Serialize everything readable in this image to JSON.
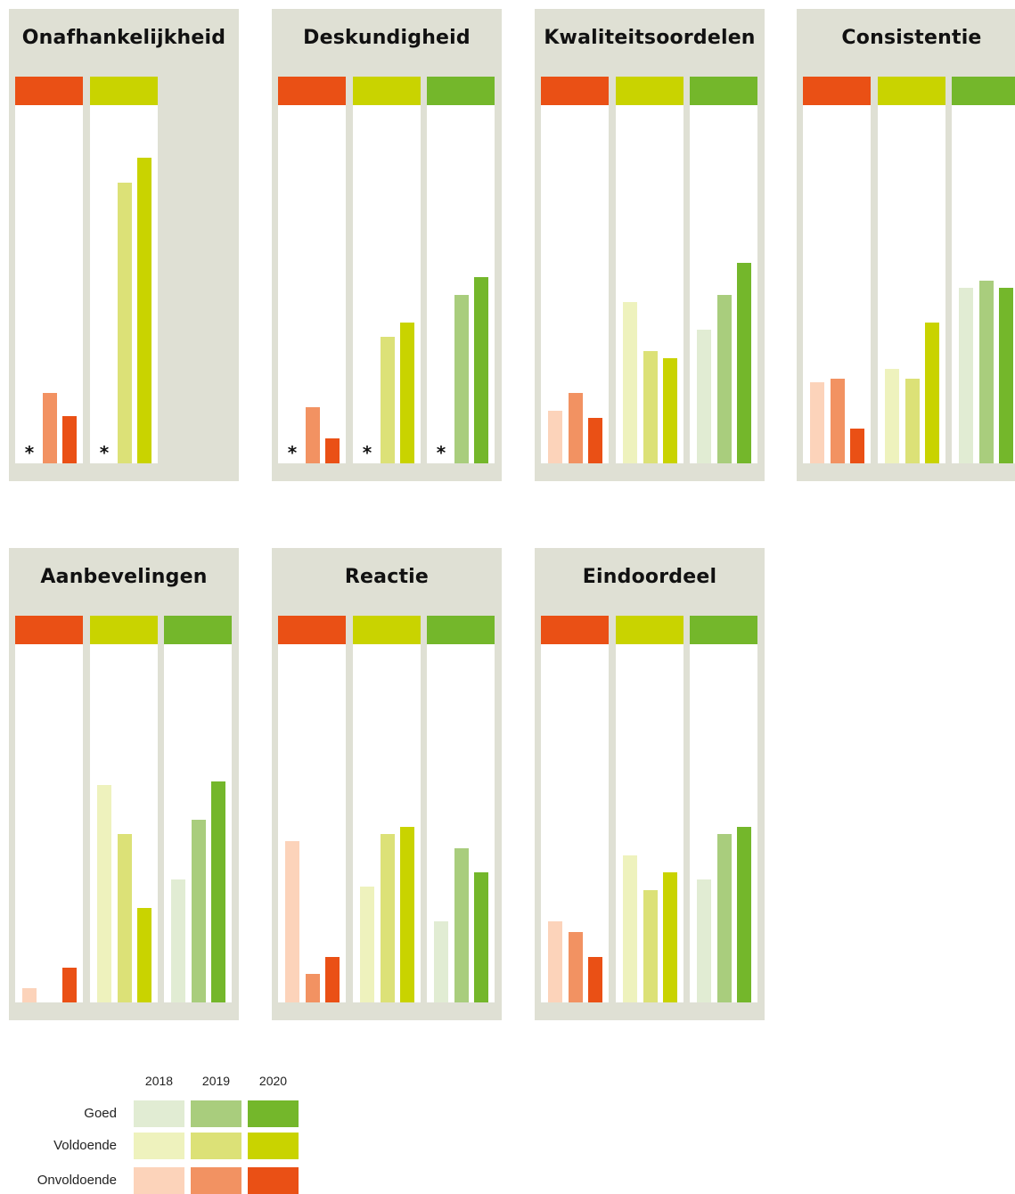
{
  "chart_data": {
    "type": "bar",
    "years": [
      "2018",
      "2019",
      "2020"
    ],
    "categories": [
      "Onvoldoende",
      "Voldoende",
      "Goed"
    ],
    "colors": {
      "Onvoldoende": [
        "#fcd3ba",
        "#f29262",
        "#ea5015"
      ],
      "Voldoende": [
        "#eef2bd",
        "#dce177",
        "#c9d300"
      ],
      "Goed": [
        "#e1ecd3",
        "#a9cd7d",
        "#74b72b"
      ]
    },
    "header_colors": {
      "Onvoldoende": "#ea5015",
      "Voldoende": "#c9d300",
      "Goed": "#74b72b"
    },
    "ylim": [
      0,
      100
    ],
    "panels": [
      {
        "title": "Onafhankelijkheid",
        "groups": [
          {
            "category": "Onvoldoende",
            "values": [
              null,
              20,
              13.5
            ]
          },
          {
            "category": "Voldoende",
            "values": [
              null,
              80,
              87
            ]
          }
        ]
      },
      {
        "title": "Deskundigheid",
        "groups": [
          {
            "category": "Onvoldoende",
            "values": [
              null,
              16,
              7
            ]
          },
          {
            "category": "Voldoende",
            "values": [
              null,
              36,
              40
            ]
          },
          {
            "category": "Goed",
            "values": [
              null,
              48,
              53
            ]
          }
        ]
      },
      {
        "title": "Kwaliteitsoordelen",
        "groups": [
          {
            "category": "Onvoldoende",
            "values": [
              15,
              20,
              13
            ]
          },
          {
            "category": "Voldoende",
            "values": [
              46,
              32,
              30
            ]
          },
          {
            "category": "Goed",
            "values": [
              38,
              48,
              57
            ]
          }
        ]
      },
      {
        "title": "Consistentie",
        "groups": [
          {
            "category": "Onvoldoende",
            "values": [
              23,
              24,
              10
            ]
          },
          {
            "category": "Voldoende",
            "values": [
              27,
              24,
              40
            ]
          },
          {
            "category": "Goed",
            "values": [
              50,
              52,
              50
            ]
          }
        ]
      },
      {
        "title": "Aanbevelingen",
        "groups": [
          {
            "category": "Onvoldoende",
            "values": [
              4,
              0,
              10
            ]
          },
          {
            "category": "Voldoende",
            "values": [
              62,
              48,
              27
            ]
          },
          {
            "category": "Goed",
            "values": [
              35,
              52,
              63
            ]
          }
        ]
      },
      {
        "title": "Reactie",
        "groups": [
          {
            "category": "Onvoldoende",
            "values": [
              46,
              8,
              13
            ]
          },
          {
            "category": "Voldoende",
            "values": [
              33,
              48,
              50
            ]
          },
          {
            "category": "Goed",
            "values": [
              23,
              44,
              37
            ]
          }
        ]
      },
      {
        "title": "Eindoordeel",
        "groups": [
          {
            "category": "Onvoldoende",
            "values": [
              23,
              20,
              13
            ]
          },
          {
            "category": "Voldoende",
            "values": [
              42,
              32,
              37
            ]
          },
          {
            "category": "Goed",
            "values": [
              35,
              48,
              50
            ]
          }
        ]
      }
    ],
    "missing_marker": "*",
    "legend": {
      "years": [
        "2018",
        "2019",
        "2020"
      ],
      "rows": [
        "Goed",
        "Voldoende",
        "Onvoldoende"
      ]
    }
  }
}
